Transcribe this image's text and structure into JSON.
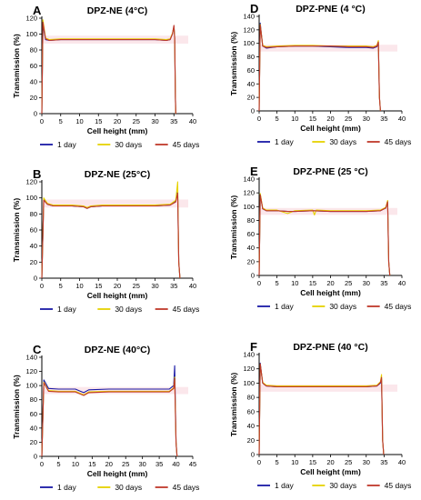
{
  "chart_data": [
    {
      "type": "line",
      "panel_label": "A",
      "title": "DPZ-NE (4°C)",
      "xlabel": "Cell height (mm)",
      "ylabel": "Transmission (%)",
      "xlim": [
        0,
        40
      ],
      "ylim": [
        0,
        120
      ],
      "xticks": [
        0,
        5,
        10,
        15,
        20,
        25,
        30,
        35,
        40
      ],
      "yticks": [
        0,
        20,
        40,
        60,
        80,
        100,
        120
      ],
      "legend_position": "bottom",
      "series": [
        {
          "name": "1 day",
          "color": "#1a1aa6",
          "x": [
            0,
            0.3,
            1,
            2,
            5,
            10,
            15,
            20,
            25,
            30,
            33,
            34,
            34.6,
            35,
            35.2,
            35.4,
            35.5
          ],
          "y": [
            0,
            112,
            93,
            92,
            93,
            93,
            93,
            93,
            93,
            93,
            92,
            93,
            100,
            110,
            95,
            20,
            0
          ]
        },
        {
          "name": "30 days",
          "color": "#e6d200",
          "x": [
            0,
            0.3,
            1,
            2,
            5,
            10,
            15,
            20,
            25,
            30,
            33,
            34,
            34.6,
            35,
            35.2,
            35.4,
            35.5
          ],
          "y": [
            0,
            118,
            95,
            93,
            94,
            94,
            94,
            94,
            94,
            94,
            93,
            94,
            101,
            109,
            96,
            20,
            0
          ]
        },
        {
          "name": "45 days",
          "color": "#c0392b",
          "x": [
            0,
            0.3,
            1,
            2,
            5,
            10,
            15,
            20,
            25,
            30,
            33,
            34,
            34.6,
            35,
            35.2,
            35.4,
            35.5
          ],
          "y": [
            0,
            115,
            94,
            92,
            93,
            93,
            93,
            93,
            93,
            93,
            92,
            93,
            100,
            111,
            95,
            20,
            0
          ]
        }
      ]
    },
    {
      "type": "line",
      "panel_label": "D",
      "title": "DPZ-PNE (4 °C)",
      "xlabel": "Cell height (mm)",
      "ylabel": "Transmission (%)",
      "xlim": [
        0,
        40
      ],
      "ylim": [
        0,
        140
      ],
      "xticks": [
        0,
        5,
        10,
        15,
        20,
        25,
        30,
        35,
        40
      ],
      "yticks": [
        0,
        20,
        40,
        60,
        80,
        100,
        120,
        140
      ],
      "legend_position": "bottom",
      "series": [
        {
          "name": "1 day",
          "color": "#1a1aa6",
          "x": [
            0,
            0.3,
            1,
            2,
            5,
            10,
            15,
            20,
            25,
            30,
            32,
            33,
            33.4,
            33.7,
            34
          ],
          "y": [
            0,
            130,
            96,
            93,
            95,
            96,
            96,
            95,
            94,
            94,
            93,
            95,
            100,
            20,
            0
          ]
        },
        {
          "name": "30 days",
          "color": "#e6d200",
          "x": [
            0,
            0.3,
            1,
            2,
            5,
            10,
            15,
            20,
            25,
            30,
            32,
            33,
            33.4,
            33.7,
            34
          ],
          "y": [
            0,
            128,
            97,
            95,
            96,
            97,
            97,
            96,
            96,
            96,
            95,
            97,
            104,
            20,
            0
          ]
        },
        {
          "name": "45 days",
          "color": "#c0392b",
          "x": [
            0,
            0.3,
            1,
            2,
            5,
            10,
            15,
            20,
            25,
            30,
            32,
            33,
            33.4,
            33.7,
            34
          ],
          "y": [
            0,
            127,
            96,
            94,
            95,
            96,
            96,
            96,
            95,
            95,
            94,
            96,
            102,
            20,
            0
          ]
        }
      ]
    },
    {
      "type": "line",
      "panel_label": "B",
      "title": "DPZ-NE (25°C)",
      "xlabel": "Cell height (mm)",
      "ylabel": "Transmission (%)",
      "xlim": [
        0,
        40
      ],
      "ylim": [
        0,
        120
      ],
      "xticks": [
        0,
        5,
        10,
        15,
        20,
        25,
        30,
        35,
        40
      ],
      "yticks": [
        0,
        20,
        40,
        60,
        80,
        100,
        120
      ],
      "legend_position": "bottom",
      "series": [
        {
          "name": "1 day",
          "color": "#1a1aa6",
          "x": [
            0,
            0.5,
            1.5,
            3,
            8,
            11,
            12,
            13,
            16,
            20,
            25,
            30,
            34,
            35.5,
            36,
            36.3,
            36.6
          ],
          "y": [
            0,
            98,
            92,
            90,
            90,
            89,
            87,
            89,
            90,
            90,
            90,
            90,
            91,
            96,
            108,
            20,
            0
          ]
        },
        {
          "name": "30 days",
          "color": "#e6d200",
          "x": [
            0,
            0.5,
            1.5,
            3,
            8,
            11,
            12,
            13,
            16,
            20,
            25,
            30,
            34,
            35.5,
            36,
            36.3,
            36.6
          ],
          "y": [
            0,
            100,
            93,
            91,
            91,
            90,
            88,
            90,
            91,
            91,
            91,
            91,
            92,
            97,
            120,
            20,
            0
          ]
        },
        {
          "name": "45 days",
          "color": "#c0392b",
          "x": [
            0,
            0.5,
            1.5,
            3,
            8,
            11,
            12,
            13,
            16,
            20,
            25,
            30,
            34,
            35.5,
            36,
            36.3,
            36.6
          ],
          "y": [
            0,
            97,
            92,
            90,
            90,
            89,
            87,
            89,
            90,
            90,
            90,
            90,
            91,
            95,
            106,
            20,
            0
          ]
        }
      ]
    },
    {
      "type": "line",
      "panel_label": "E",
      "title": "DPZ-PNE (25 °C)",
      "xlabel": "Cell height (mm)",
      "ylabel": "Transmission (%)",
      "xlim": [
        0,
        40
      ],
      "ylim": [
        0,
        140
      ],
      "xticks": [
        0,
        5,
        10,
        15,
        20,
        25,
        30,
        35,
        40
      ],
      "yticks": [
        0,
        20,
        40,
        60,
        80,
        100,
        120,
        140
      ],
      "legend_position": "bottom",
      "series": [
        {
          "name": "1 day",
          "color": "#1a1aa6",
          "x": [
            0,
            0.3,
            1,
            2,
            5,
            8,
            10,
            15,
            20,
            25,
            30,
            34,
            35.5,
            36,
            36.3,
            36.6
          ],
          "y": [
            0,
            118,
            97,
            94,
            94,
            93,
            93,
            94,
            93,
            93,
            93,
            94,
            98,
            108,
            20,
            0
          ]
        },
        {
          "name": "30 days",
          "color": "#e6d200",
          "x": [
            0,
            0.3,
            1,
            2,
            5,
            8,
            10,
            15,
            15.5,
            16,
            20,
            25,
            30,
            34,
            35.5,
            36,
            36.3,
            36.6
          ],
          "y": [
            0,
            119,
            98,
            95,
            95,
            90,
            94,
            95,
            88,
            95,
            94,
            94,
            94,
            95,
            99,
            109,
            20,
            0
          ]
        },
        {
          "name": "45 days",
          "color": "#c0392b",
          "x": [
            0,
            0.3,
            1,
            2,
            5,
            8,
            10,
            15,
            20,
            25,
            30,
            34,
            35.5,
            36,
            36.3,
            36.6
          ],
          "y": [
            0,
            117,
            97,
            94,
            94,
            93,
            93,
            94,
            93,
            93,
            93,
            94,
            98,
            107,
            20,
            0
          ]
        }
      ]
    },
    {
      "type": "line",
      "panel_label": "C",
      "title": "DPZ-NE (40°C)",
      "xlabel": "Cell height (mm)",
      "ylabel": "Transmission (%)",
      "xlim": [
        0,
        45
      ],
      "ylim": [
        0,
        140
      ],
      "xticks": [
        0,
        5,
        10,
        15,
        20,
        25,
        30,
        35,
        40,
        45
      ],
      "yticks": [
        0,
        20,
        40,
        60,
        80,
        100,
        120,
        140
      ],
      "legend_position": "bottom",
      "series": [
        {
          "name": "1 day",
          "color": "#1a1aa6",
          "x": [
            0,
            0.6,
            2,
            5,
            10,
            11.5,
            12.5,
            14,
            20,
            25,
            30,
            35,
            38,
            39.3,
            39.6,
            40,
            40.3
          ],
          "y": [
            0,
            108,
            96,
            95,
            95,
            92,
            90,
            94,
            95,
            95,
            95,
            95,
            95,
            100,
            128,
            20,
            0
          ]
        },
        {
          "name": "30 days",
          "color": "#e6d200",
          "x": [
            0,
            0.6,
            2,
            5,
            10,
            11.5,
            12.5,
            14,
            20,
            25,
            30,
            35,
            38,
            39.3,
            39.6,
            40,
            40.3
          ],
          "y": [
            0,
            105,
            93,
            92,
            92,
            89,
            87,
            91,
            92,
            92,
            92,
            92,
            92,
            97,
            112,
            20,
            0
          ]
        },
        {
          "name": "45 days",
          "color": "#c0392b",
          "x": [
            0,
            0.6,
            2,
            5,
            10,
            11.5,
            12.5,
            14,
            20,
            25,
            30,
            35,
            38,
            39.3,
            39.6,
            40,
            40.3
          ],
          "y": [
            0,
            104,
            92,
            91,
            91,
            88,
            86,
            90,
            91,
            91,
            91,
            91,
            91,
            96,
            110,
            20,
            0
          ]
        }
      ]
    },
    {
      "type": "line",
      "panel_label": "F",
      "title": "DPZ-PNE (40 °C)",
      "xlabel": "Cell height (mm)",
      "ylabel": "Transmission (%)",
      "xlim": [
        0,
        40
      ],
      "ylim": [
        0,
        140
      ],
      "xticks": [
        0,
        5,
        10,
        15,
        20,
        25,
        30,
        35,
        40
      ],
      "yticks": [
        0,
        20,
        40,
        60,
        80,
        100,
        120,
        140
      ],
      "legend_position": "bottom",
      "series": [
        {
          "name": "1 day",
          "color": "#1a1aa6",
          "x": [
            0,
            0.3,
            1,
            2,
            5,
            10,
            15,
            20,
            25,
            30,
            33,
            34,
            34.3,
            34.6,
            34.9
          ],
          "y": [
            0,
            128,
            100,
            96,
            95,
            95,
            95,
            95,
            95,
            95,
            96,
            100,
            106,
            20,
            0
          ]
        },
        {
          "name": "30 days",
          "color": "#e6d200",
          "x": [
            0,
            0.3,
            1,
            2,
            5,
            10,
            15,
            20,
            25,
            30,
            33,
            34,
            34.3,
            34.6,
            34.9
          ],
          "y": [
            0,
            126,
            101,
            97,
            96,
            96,
            96,
            96,
            96,
            96,
            97,
            102,
            112,
            20,
            0
          ]
        },
        {
          "name": "45 days",
          "color": "#c0392b",
          "x": [
            0,
            0.3,
            1,
            2,
            5,
            10,
            15,
            20,
            25,
            30,
            33,
            34,
            34.3,
            34.6,
            34.9
          ],
          "y": [
            0,
            127,
            100,
            96,
            95,
            95,
            95,
            95,
            95,
            95,
            96,
            101,
            108,
            20,
            0
          ]
        }
      ]
    }
  ]
}
